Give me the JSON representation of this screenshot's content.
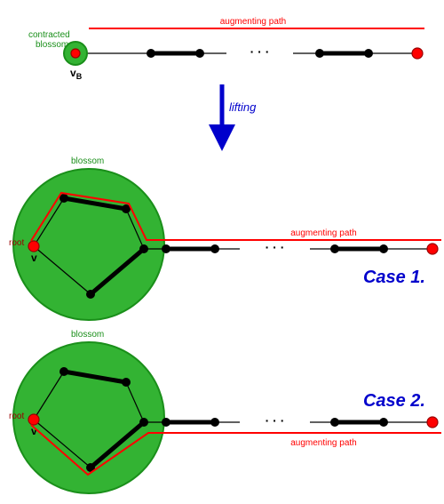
{
  "colors": {
    "red": "#ff0000",
    "green_fill": "#33b333",
    "green_stroke": "#1a8f1a",
    "green_text": "#1a8f1a",
    "blue": "#0000cc",
    "black": "#000000",
    "dark_red": "#990000"
  },
  "top": {
    "aug_label": "augmenting path",
    "blossom_label_l1": "contracted",
    "blossom_label_l2": "blossom",
    "vb_label": "v",
    "vb_sub": "B",
    "lifting_label": "lifting"
  },
  "case1": {
    "blossom_label": "blossom",
    "root_label": "root",
    "v_label": "v",
    "aug_label": "augmenting path",
    "case_label": "Case 1."
  },
  "case2": {
    "blossom_label": "blossom",
    "root_label": "root",
    "v_label": "v",
    "aug_label": "augmenting path",
    "case_label": "Case 2."
  },
  "layout": {
    "font_small": 10,
    "font_vlabel": 12,
    "font_case": 20,
    "font_lifting": 13,
    "thin_edge": 1.2,
    "thick_edge": 5,
    "aug_line_w": 2,
    "node_r": 5,
    "red_node_r": 6,
    "small_blossom_r": 13,
    "big_blossom_r": 85
  }
}
